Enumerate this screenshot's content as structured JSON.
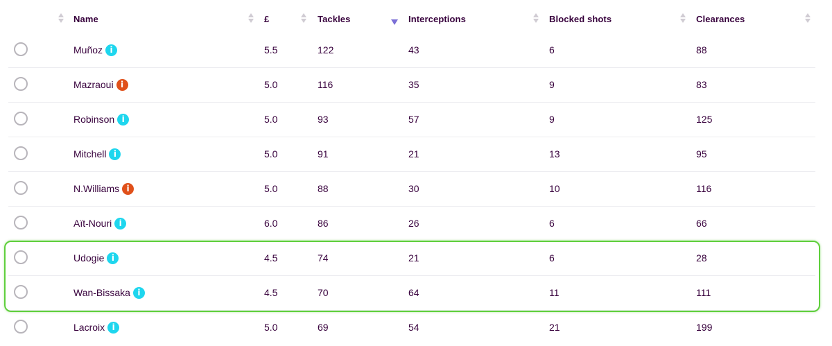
{
  "table": {
    "columns": [
      {
        "key": "select",
        "label": ""
      },
      {
        "key": "name",
        "label": "Name"
      },
      {
        "key": "price",
        "label": "£"
      },
      {
        "key": "tackles",
        "label": "Tackles",
        "sorted": "desc"
      },
      {
        "key": "interceptions",
        "label": "Interceptions"
      },
      {
        "key": "blocked_shots",
        "label": "Blocked shots"
      },
      {
        "key": "clearances",
        "label": "Clearances"
      }
    ],
    "rows": [
      {
        "name": "Muñoz",
        "status": "available",
        "price": "5.5",
        "tackles": "122",
        "interceptions": "43",
        "blocked_shots": "6",
        "clearances": "88"
      },
      {
        "name": "Mazraoui",
        "status": "flagged",
        "price": "5.0",
        "tackles": "116",
        "interceptions": "35",
        "blocked_shots": "9",
        "clearances": "83"
      },
      {
        "name": "Robinson",
        "status": "available",
        "price": "5.0",
        "tackles": "93",
        "interceptions": "57",
        "blocked_shots": "9",
        "clearances": "125"
      },
      {
        "name": "Mitchell",
        "status": "available",
        "price": "5.0",
        "tackles": "91",
        "interceptions": "21",
        "blocked_shots": "13",
        "clearances": "95"
      },
      {
        "name": "N.Williams",
        "status": "flagged",
        "price": "5.0",
        "tackles": "88",
        "interceptions": "30",
        "blocked_shots": "10",
        "clearances": "116"
      },
      {
        "name": "Aït-Nouri",
        "status": "available",
        "price": "6.0",
        "tackles": "86",
        "interceptions": "26",
        "blocked_shots": "6",
        "clearances": "66"
      },
      {
        "name": "Udogie",
        "status": "available",
        "price": "4.5",
        "tackles": "74",
        "interceptions": "21",
        "blocked_shots": "6",
        "clearances": "28",
        "highlighted": true
      },
      {
        "name": "Wan-Bissaka",
        "status": "available",
        "price": "4.5",
        "tackles": "70",
        "interceptions": "64",
        "blocked_shots": "11",
        "clearances": "111",
        "highlighted": true
      },
      {
        "name": "Lacroix",
        "status": "available",
        "price": "5.0",
        "tackles": "69",
        "interceptions": "54",
        "blocked_shots": "21",
        "clearances": "199"
      }
    ]
  },
  "info_glyph": "i",
  "colors": {
    "text": "#37003c",
    "info_available": "#1ed6ee",
    "info_flagged": "#e0501a",
    "highlight_border": "#5fcf3c",
    "sort_active": "#7b6fd6"
  }
}
